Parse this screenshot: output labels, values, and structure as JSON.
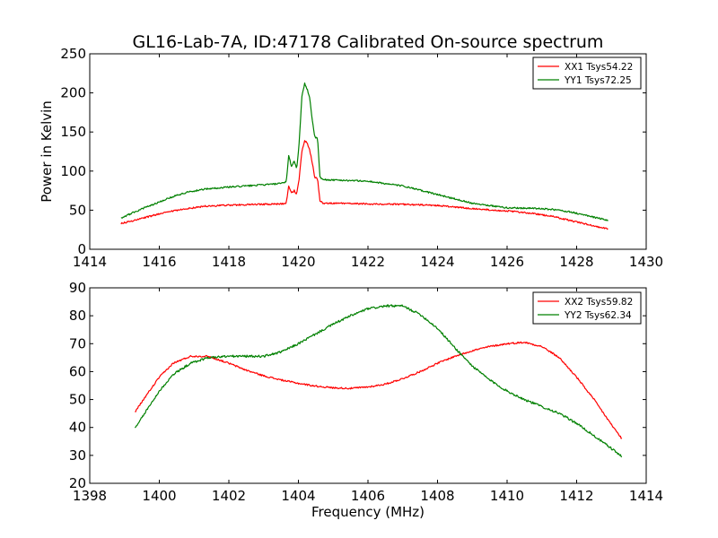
{
  "title": "GL16-Lab-7A, ID:47178 Calibrated On-source spectrum",
  "chart_data": [
    {
      "type": "line",
      "title": "GL16-Lab-7A, ID:47178 Calibrated On-source spectrum",
      "xlabel": "",
      "ylabel": "Power in Kelvin",
      "xlim": [
        1414,
        1430
      ],
      "ylim": [
        0,
        250
      ],
      "xticks": [
        "1414",
        "1416",
        "1418",
        "1420",
        "1422",
        "1424",
        "1426",
        "1428",
        "1430"
      ],
      "yticks": [
        "0",
        "50",
        "100",
        "150",
        "200",
        "250"
      ],
      "grid": false,
      "legend_position": "top-right",
      "series": [
        {
          "name": "XX1 Tsys54.22",
          "color": "#ff0000",
          "x": [
            1414.9,
            1415.3,
            1415.8,
            1416.3,
            1416.8,
            1417.3,
            1418.0,
            1418.5,
            1419.0,
            1419.5,
            1419.65,
            1419.72,
            1419.8,
            1419.88,
            1419.95,
            1420.02,
            1420.1,
            1420.18,
            1420.25,
            1420.32,
            1420.4,
            1420.47,
            1420.55,
            1420.62,
            1420.7,
            1421.5,
            1422.0,
            1423.0,
            1424.0,
            1425.0,
            1426.0,
            1426.7,
            1427.3,
            1427.8,
            1428.3,
            1428.9
          ],
          "y": [
            33,
            37,
            43,
            48,
            52,
            55,
            56.5,
            57,
            57.5,
            58,
            59,
            80,
            72,
            75,
            70,
            90,
            125,
            139,
            136,
            128,
            110,
            92,
            90,
            62,
            59,
            58.5,
            58,
            57.5,
            56,
            52,
            49,
            46,
            42,
            37,
            32,
            26
          ],
          "noise": 1.0
        },
        {
          "name": "YY1 Tsys72.25",
          "color": "#008000",
          "x": [
            1414.9,
            1415.3,
            1415.8,
            1416.3,
            1416.8,
            1417.3,
            1418.0,
            1418.5,
            1419.0,
            1419.5,
            1419.65,
            1419.72,
            1419.8,
            1419.88,
            1419.95,
            1420.02,
            1420.1,
            1420.18,
            1420.25,
            1420.32,
            1420.4,
            1420.47,
            1420.55,
            1420.62,
            1420.7,
            1421.5,
            1422.0,
            1423.0,
            1424.0,
            1425.0,
            1426.0,
            1426.7,
            1427.3,
            1427.8,
            1428.3,
            1428.9
          ],
          "y": [
            40,
            48,
            57,
            66,
            73,
            77,
            79.5,
            81,
            82.5,
            84,
            86,
            120,
            106,
            113,
            103,
            135,
            195,
            212,
            205,
            195,
            165,
            143,
            142,
            92,
            89,
            88,
            87,
            81,
            70,
            59,
            53,
            52.5,
            51,
            48,
            43,
            37
          ],
          "noise": 1.0
        }
      ]
    },
    {
      "type": "line",
      "title": "",
      "xlabel": "Frequency (MHz)",
      "ylabel": "",
      "xlim": [
        1398,
        1414
      ],
      "ylim": [
        20,
        90
      ],
      "xticks": [
        "1398",
        "1400",
        "1402",
        "1404",
        "1406",
        "1408",
        "1410",
        "1412",
        "1414"
      ],
      "yticks": [
        "20",
        "30",
        "40",
        "50",
        "60",
        "70",
        "80",
        "90"
      ],
      "grid": false,
      "legend_position": "top-right",
      "series": [
        {
          "name": "XX2 Tsys59.82",
          "color": "#ff0000",
          "x": [
            1399.3,
            1399.6,
            1400.0,
            1400.4,
            1400.9,
            1401.4,
            1402.0,
            1402.5,
            1403.0,
            1403.5,
            1404.0,
            1404.5,
            1405.0,
            1405.5,
            1406.0,
            1406.5,
            1407.0,
            1407.5,
            1408.0,
            1408.5,
            1409.0,
            1409.5,
            1410.0,
            1410.5,
            1411.0,
            1411.5,
            1412.0,
            1412.5,
            1413.0,
            1413.3
          ],
          "y": [
            45.5,
            51,
            58,
            63,
            65.5,
            65.5,
            63,
            60.5,
            58.5,
            57,
            55.8,
            54.8,
            54.2,
            54,
            54.5,
            55.5,
            57.5,
            60,
            63,
            65.5,
            67.5,
            69,
            70,
            70.5,
            69,
            65,
            58,
            50,
            41,
            36
          ],
          "noise": 0.3
        },
        {
          "name": "YY2 Tsys62.34",
          "color": "#008000",
          "x": [
            1399.3,
            1399.6,
            1400.0,
            1400.4,
            1400.9,
            1401.4,
            1402.0,
            1402.5,
            1403.0,
            1403.5,
            1404.0,
            1404.5,
            1405.0,
            1405.5,
            1406.0,
            1406.5,
            1407.0,
            1407.5,
            1408.0,
            1408.5,
            1409.0,
            1409.5,
            1410.0,
            1410.5,
            1411.0,
            1411.5,
            1412.0,
            1412.5,
            1413.0,
            1413.3
          ],
          "y": [
            39.5,
            45.5,
            53,
            59,
            63,
            65,
            65.5,
            65.5,
            65.5,
            67,
            70,
            73.5,
            77,
            80,
            82.5,
            83.5,
            83.5,
            80.5,
            75.5,
            68.5,
            62,
            57,
            53,
            50,
            47.5,
            45,
            41.5,
            37,
            32.5,
            29.5
          ],
          "noise": 0.4
        }
      ]
    }
  ]
}
